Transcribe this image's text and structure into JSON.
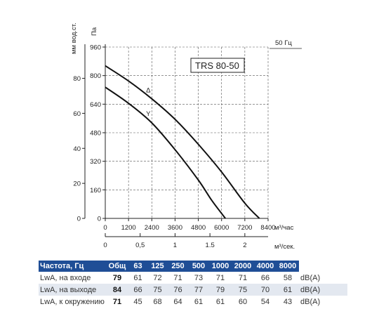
{
  "chart_data": {
    "type": "line",
    "model_label": "TRS 80-50",
    "frequency_label": "50 Гц",
    "ylabel_primary": "Па",
    "ylabel_secondary": "мм вод.ст.",
    "xlabel_primary": "м³/час",
    "xlabel_secondary": "м³/сек.",
    "xlim": [
      0,
      8400
    ],
    "ylim": [
      0,
      960
    ],
    "x_ticks": [
      "0",
      "1200",
      "2400",
      "3600",
      "4800",
      "6000",
      "7200",
      "8400"
    ],
    "y_ticks": [
      "0",
      "160",
      "320",
      "480",
      "640",
      "800",
      "960"
    ],
    "y2_ticks": [
      "0",
      "20",
      "40",
      "60",
      "80"
    ],
    "x2_ticks": [
      "0",
      "0,5",
      "1",
      "1.5",
      "2"
    ],
    "grid": true,
    "series": [
      {
        "name": "Δ",
        "x": [
          0,
          1200,
          2400,
          3600,
          4800,
          6000,
          7200,
          7950
        ],
        "y": [
          855,
          770,
          670,
          555,
          415,
          260,
          85,
          0
        ]
      },
      {
        "name": "Y",
        "x": [
          0,
          1200,
          2400,
          3600,
          4800,
          5500,
          6200
        ],
        "y": [
          735,
          645,
          535,
          385,
          215,
          100,
          0
        ]
      }
    ]
  },
  "table": {
    "headers": [
      "Частота, Гц",
      "Общ",
      "63",
      "125",
      "250",
      "500",
      "1000",
      "2000",
      "4000",
      "8000",
      ""
    ],
    "rows": [
      {
        "label": "LwA, на входе",
        "total": "79",
        "values": [
          "61",
          "72",
          "71",
          "73",
          "71",
          "71",
          "66",
          "58"
        ],
        "unit": "dB(A)"
      },
      {
        "label": "LwA, на выходе",
        "total": "84",
        "values": [
          "66",
          "75",
          "76",
          "77",
          "79",
          "75",
          "70",
          "61"
        ],
        "unit": "dB(A)"
      },
      {
        "label": "LwA, к окружению",
        "total": "71",
        "values": [
          "45",
          "68",
          "64",
          "61",
          "61",
          "60",
          "54",
          "43"
        ],
        "unit": "dB(A)"
      }
    ]
  }
}
